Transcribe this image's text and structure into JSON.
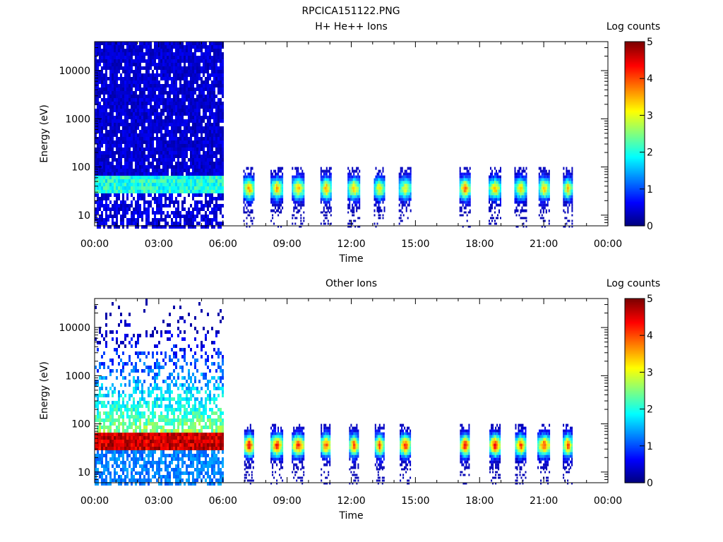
{
  "page_title": "RPCICA151122.PNG",
  "chart_data": [
    {
      "type": "heatmap",
      "title": "H+ He++ Ions",
      "xlabel": "Time",
      "ylabel": "Energy (eV)",
      "y_scale": "log",
      "ylim": [
        6,
        40000
      ],
      "x_ticks": [
        "00:00",
        "03:00",
        "06:00",
        "09:00",
        "12:00",
        "15:00",
        "18:00",
        "21:00",
        "00:00"
      ],
      "x_range_hours": [
        0,
        24
      ],
      "y_ticks": [
        "10",
        "100",
        "1000",
        "10000"
      ],
      "colorbar_label": "Log counts",
      "colorbar_range": [
        0,
        5
      ],
      "colorbar_ticks": [
        "0",
        "1",
        "2",
        "3",
        "4",
        "5"
      ],
      "continuous_block": {
        "start_hour": 0,
        "end_hour": 6,
        "band_low_ev": 30,
        "band_high_ev": 70,
        "band_level": 2.0,
        "background_level": 0.2
      },
      "bursts": [
        {
          "hour": 7.2,
          "level": 3.8
        },
        {
          "hour": 8.5,
          "level": 3.6
        },
        {
          "hour": 9.5,
          "level": 3.6
        },
        {
          "hour": 10.8,
          "level": 3.8
        },
        {
          "hour": 12.1,
          "level": 3.6
        },
        {
          "hour": 13.3,
          "level": 3.4
        },
        {
          "hour": 14.5,
          "level": 3.2
        },
        {
          "hour": 17.3,
          "level": 4.0
        },
        {
          "hour": 18.7,
          "level": 3.6
        },
        {
          "hour": 19.9,
          "level": 3.4
        },
        {
          "hour": 21.0,
          "level": 3.6
        },
        {
          "hour": 22.1,
          "level": 3.6
        }
      ]
    },
    {
      "type": "heatmap",
      "title": "Other Ions",
      "xlabel": "Time",
      "ylabel": "Energy (eV)",
      "y_scale": "log",
      "ylim": [
        6,
        40000
      ],
      "x_ticks": [
        "00:00",
        "03:00",
        "06:00",
        "09:00",
        "12:00",
        "15:00",
        "18:00",
        "21:00",
        "00:00"
      ],
      "x_range_hours": [
        0,
        24
      ],
      "y_ticks": [
        "10",
        "100",
        "1000",
        "10000"
      ],
      "colorbar_label": "Log counts",
      "colorbar_range": [
        0,
        5
      ],
      "colorbar_ticks": [
        "0",
        "1",
        "2",
        "3",
        "4",
        "5"
      ],
      "continuous_block": {
        "start_hour": 0,
        "end_hour": 6,
        "band_low_ev": 30,
        "band_high_ev": 70,
        "band_level": 4.6,
        "background_level": 1.0
      },
      "bursts": [
        {
          "hour": 7.2,
          "level": 4.6
        },
        {
          "hour": 8.5,
          "level": 4.4
        },
        {
          "hour": 9.5,
          "level": 4.4
        },
        {
          "hour": 10.8,
          "level": 4.2
        },
        {
          "hour": 12.1,
          "level": 4.2
        },
        {
          "hour": 13.3,
          "level": 4.2
        },
        {
          "hour": 14.5,
          "level": 4.4
        },
        {
          "hour": 17.3,
          "level": 4.6
        },
        {
          "hour": 18.7,
          "level": 4.6
        },
        {
          "hour": 19.9,
          "level": 4.2
        },
        {
          "hour": 21.0,
          "level": 4.2
        },
        {
          "hour": 22.1,
          "level": 4.2
        }
      ]
    }
  ]
}
